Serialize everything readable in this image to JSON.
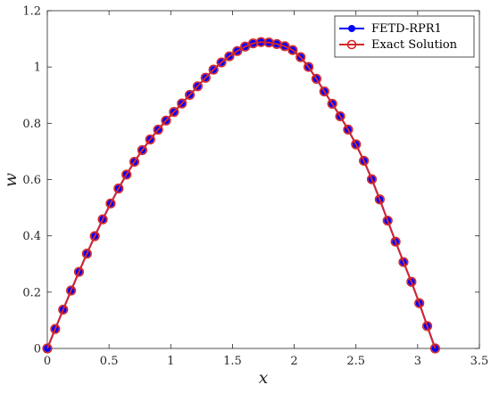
{
  "chart_data": {
    "type": "line",
    "title": "",
    "xlabel": "x",
    "ylabel": "w",
    "xlim": [
      0,
      3.5
    ],
    "ylim": [
      0,
      1.2
    ],
    "xticks": [
      0,
      0.5,
      1,
      1.5,
      2,
      2.5,
      3,
      3.5
    ],
    "yticks": [
      0,
      0.2,
      0.4,
      0.6,
      0.8,
      1,
      1.2
    ],
    "xtick_labels": [
      "0",
      "0.5",
      "1",
      "1.5",
      "2",
      "2.5",
      "3",
      "3.5"
    ],
    "ytick_labels": [
      "0",
      "0.2",
      "0.4",
      "0.6",
      "0.8",
      "1",
      "1.2"
    ],
    "grid": false,
    "legend_position": "top-right",
    "x": [
      0,
      0.0641,
      0.1282,
      0.1923,
      0.2565,
      0.3206,
      0.3847,
      0.4488,
      0.5129,
      0.577,
      0.6411,
      0.7052,
      0.7694,
      0.8335,
      0.8976,
      0.9617,
      1.0258,
      1.0899,
      1.154,
      1.2181,
      1.2823,
      1.3464,
      1.4105,
      1.4746,
      1.5387,
      1.6028,
      1.6669,
      1.731,
      1.7952,
      1.8593,
      1.9234,
      1.9875,
      2.0516,
      2.1157,
      2.1798,
      2.2439,
      2.3081,
      2.3722,
      2.4363,
      2.5004,
      2.5645,
      2.6286,
      2.6927,
      2.7568,
      2.821,
      2.8851,
      2.9492,
      3.0133,
      3.0774,
      3.1416
    ],
    "series": [
      {
        "name": "FETD-RPR1",
        "color": "#0000ff",
        "marker": "filled-circle",
        "values": [
          0,
          0.0692,
          0.1379,
          0.2057,
          0.2721,
          0.3367,
          0.399,
          0.4586,
          0.5151,
          0.5683,
          0.6176,
          0.6631,
          0.7046,
          0.7425,
          0.7772,
          0.8095,
          0.8402,
          0.8703,
          0.9009,
          0.9315,
          0.9618,
          0.9906,
          1.0162,
          1.0379,
          1.0566,
          1.0726,
          1.0838,
          1.0885,
          1.087,
          1.0815,
          1.0739,
          1.06,
          1.035,
          1.0003,
          0.9581,
          0.9131,
          0.8692,
          0.8249,
          0.7777,
          0.725,
          0.6666,
          0.6011,
          0.5295,
          0.4542,
          0.3793,
          0.3069,
          0.2367,
          0.1608,
          0.0796,
          0
        ]
      },
      {
        "name": "Exact Solution",
        "color": "#d62728",
        "marker": "open-circle",
        "values": [
          0,
          0.0692,
          0.1379,
          0.2057,
          0.2721,
          0.3367,
          0.399,
          0.4586,
          0.5151,
          0.5683,
          0.6176,
          0.6631,
          0.7046,
          0.7425,
          0.7772,
          0.8095,
          0.8402,
          0.8703,
          0.9009,
          0.9315,
          0.9618,
          0.9906,
          1.0162,
          1.0379,
          1.0566,
          1.0726,
          1.0838,
          1.0885,
          1.087,
          1.0815,
          1.0739,
          1.06,
          1.035,
          1.0003,
          0.9581,
          0.9131,
          0.8692,
          0.8249,
          0.7777,
          0.725,
          0.6666,
          0.6011,
          0.5295,
          0.4542,
          0.3793,
          0.3069,
          0.2367,
          0.1608,
          0.0796,
          0
        ]
      }
    ]
  }
}
